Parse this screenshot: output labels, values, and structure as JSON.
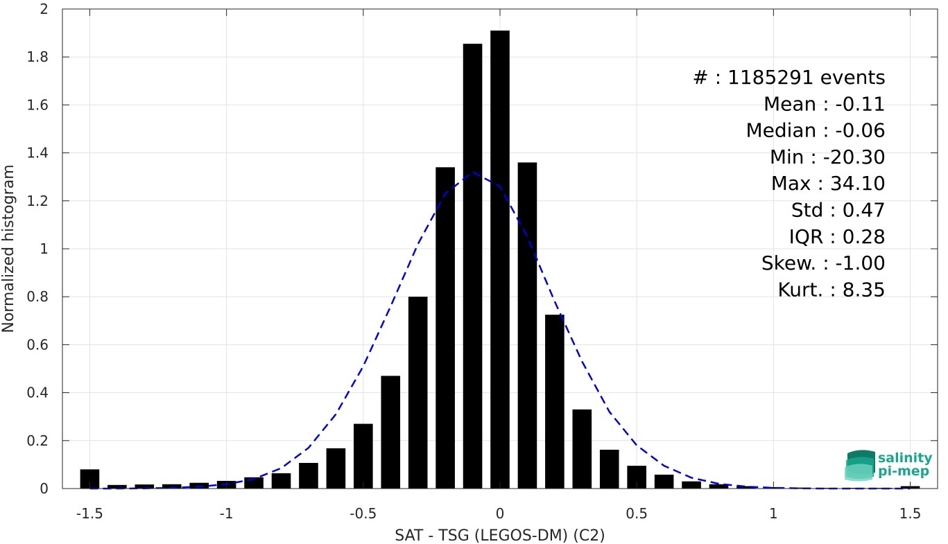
{
  "chart_data": {
    "type": "bar",
    "xlabel": "SAT - TSG (LEGOS-DM) (C2)",
    "ylabel": "Normalized histogram",
    "xlim": [
      -1.6,
      1.6
    ],
    "ylim": [
      0,
      2
    ],
    "x_ticks": [
      -1.5,
      -1,
      -0.5,
      0,
      0.5,
      1,
      1.5
    ],
    "x_tick_labels": [
      "-1.5",
      "-1",
      "-0.5",
      "0",
      "0.5",
      "1",
      "1.5"
    ],
    "y_ticks": [
      0,
      0.2,
      0.4,
      0.6,
      0.8,
      1,
      1.2,
      1.4,
      1.6,
      1.8,
      2
    ],
    "y_tick_labels": [
      "0",
      "0.2",
      "0.4",
      "0.6",
      "0.8",
      "1",
      "1.2",
      "1.4",
      "1.6",
      "1.8",
      "2"
    ],
    "grid": true,
    "bin_width": 0.07,
    "bar_color": "#000000",
    "bars": [
      {
        "x": -1.5,
        "y": 0.08
      },
      {
        "x": -1.4,
        "y": 0.015
      },
      {
        "x": -1.3,
        "y": 0.017
      },
      {
        "x": -1.2,
        "y": 0.018
      },
      {
        "x": -1.1,
        "y": 0.024
      },
      {
        "x": -1.0,
        "y": 0.032
      },
      {
        "x": -0.9,
        "y": 0.047
      },
      {
        "x": -0.8,
        "y": 0.064
      },
      {
        "x": -0.7,
        "y": 0.107
      },
      {
        "x": -0.6,
        "y": 0.168
      },
      {
        "x": -0.5,
        "y": 0.27
      },
      {
        "x": -0.4,
        "y": 0.47
      },
      {
        "x": -0.3,
        "y": 0.8
      },
      {
        "x": -0.2,
        "y": 1.34
      },
      {
        "x": -0.1,
        "y": 1.855
      },
      {
        "x": 0.0,
        "y": 1.91
      },
      {
        "x": 0.1,
        "y": 1.36
      },
      {
        "x": 0.2,
        "y": 0.725
      },
      {
        "x": 0.3,
        "y": 0.33
      },
      {
        "x": 0.4,
        "y": 0.162
      },
      {
        "x": 0.5,
        "y": 0.095
      },
      {
        "x": 0.6,
        "y": 0.058
      },
      {
        "x": 0.7,
        "y": 0.03
      },
      {
        "x": 0.8,
        "y": 0.018
      },
      {
        "x": 0.9,
        "y": 0.01
      },
      {
        "x": 1.0,
        "y": 0.006
      },
      {
        "x": 1.1,
        "y": 0.004
      },
      {
        "x": 1.2,
        "y": 0.003
      },
      {
        "x": 1.3,
        "y": 0.003
      },
      {
        "x": 1.4,
        "y": 0.003
      },
      {
        "x": 1.5,
        "y": 0.01
      }
    ],
    "fit_curve": {
      "color": "#0000dd",
      "style": "dashed",
      "points": [
        [
          -1.5,
          0.0
        ],
        [
          -1.4,
          0.0
        ],
        [
          -1.3,
          0.001
        ],
        [
          -1.2,
          0.003
        ],
        [
          -1.1,
          0.008
        ],
        [
          -1.0,
          0.018
        ],
        [
          -0.9,
          0.04
        ],
        [
          -0.8,
          0.085
        ],
        [
          -0.7,
          0.17
        ],
        [
          -0.6,
          0.31
        ],
        [
          -0.5,
          0.51
        ],
        [
          -0.4,
          0.76
        ],
        [
          -0.3,
          1.02
        ],
        [
          -0.2,
          1.23
        ],
        [
          -0.1,
          1.32
        ],
        [
          0.0,
          1.26
        ],
        [
          0.1,
          1.05
        ],
        [
          0.2,
          0.78
        ],
        [
          0.3,
          0.53
        ],
        [
          0.4,
          0.32
        ],
        [
          0.5,
          0.18
        ],
        [
          0.6,
          0.095
        ],
        [
          0.7,
          0.045
        ],
        [
          0.8,
          0.02
        ],
        [
          0.9,
          0.008
        ],
        [
          1.0,
          0.003
        ],
        [
          1.1,
          0.001
        ],
        [
          1.2,
          0.0
        ],
        [
          1.3,
          0.0
        ],
        [
          1.4,
          0.0
        ],
        [
          1.5,
          0.0
        ]
      ]
    },
    "stats": [
      "#  : 1185291 events",
      "Mean : -0.11",
      "Median : -0.06",
      "Min : -20.30",
      "Max : 34.10",
      "Std : 0.47",
      "IQR : 0.28",
      "Skew. : -1.00",
      "Kurt. : 8.35"
    ]
  },
  "logo": {
    "line1": "salinity",
    "line2": "pi-mep",
    "color": "#1aa68e"
  }
}
